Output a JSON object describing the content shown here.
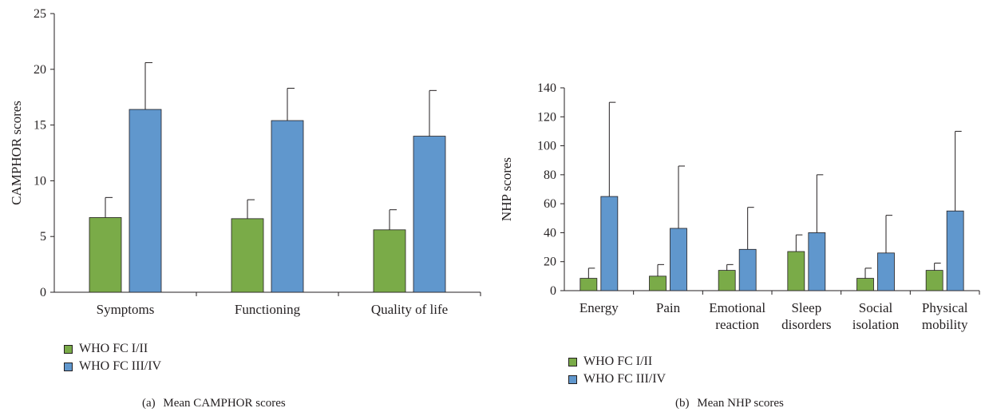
{
  "colors": {
    "group1": "#7aab48",
    "group2": "#6097cd",
    "axis": "#231f20"
  },
  "legend": {
    "group1": "WHO FC I/II",
    "group2": "WHO FC III/IV"
  },
  "chart_data": [
    {
      "type": "bar",
      "ylabel": "CAMPHOR scores",
      "ylim": [
        0,
        25
      ],
      "yticks": [
        0,
        5,
        10,
        15,
        20,
        25
      ],
      "categories": [
        "Symptoms",
        "Functioning",
        "Quality of life"
      ],
      "series": [
        {
          "name": "WHO FC I/II",
          "values": [
            6.7,
            6.6,
            5.6
          ],
          "error": [
            1.8,
            1.7,
            1.8
          ]
        },
        {
          "name": "WHO FC III/IV",
          "values": [
            16.4,
            15.4,
            14.0
          ],
          "error": [
            4.2,
            2.9,
            4.1
          ]
        }
      ],
      "legend_position": "bottom-left"
    },
    {
      "type": "bar",
      "ylabel": "NHP scores",
      "ylim": [
        0,
        140
      ],
      "yticks": [
        0,
        20,
        40,
        60,
        80,
        100,
        120,
        140
      ],
      "categories": [
        [
          "Energy"
        ],
        [
          "Pain"
        ],
        [
          "Emotional",
          "reaction"
        ],
        [
          "Sleep",
          "disorders"
        ],
        [
          "Social",
          "isolation"
        ],
        [
          "Physical",
          "mobility"
        ]
      ],
      "series": [
        {
          "name": "WHO FC I/II",
          "values": [
            8.5,
            10,
            14,
            27,
            8.5,
            14
          ],
          "error": [
            7,
            8,
            4,
            11.5,
            7,
            5
          ]
        },
        {
          "name": "WHO FC III/IV",
          "values": [
            65,
            43,
            28.5,
            40,
            26,
            55
          ],
          "error": [
            65,
            43,
            29,
            40,
            26,
            55
          ]
        }
      ],
      "legend_position": "bottom-left"
    }
  ],
  "captions": {
    "a_label": "(a)",
    "a_text": "Mean CAMPHOR scores",
    "b_label": "(b)",
    "b_text": "Mean NHP scores"
  }
}
